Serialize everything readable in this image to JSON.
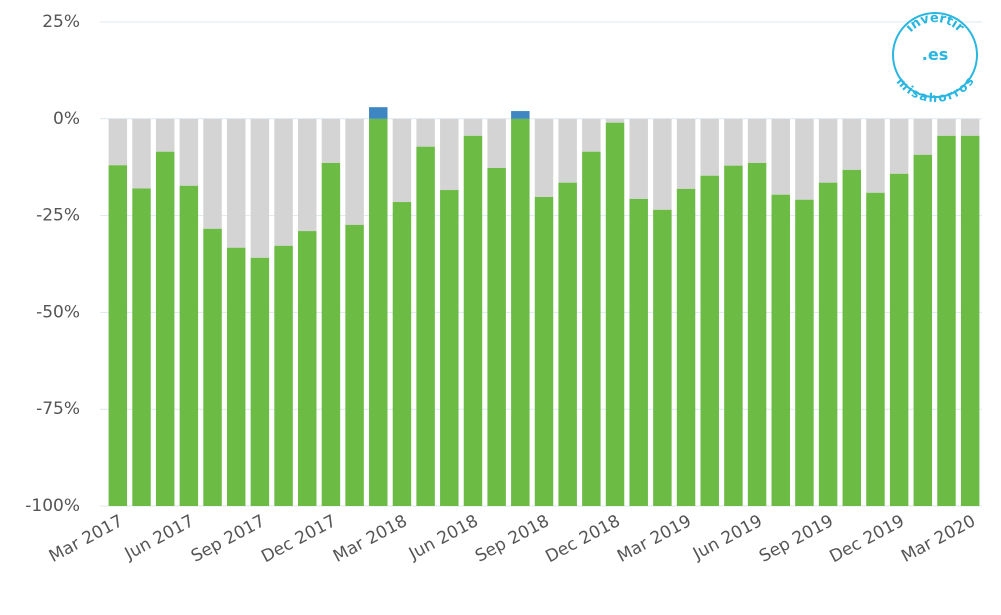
{
  "chart_data": {
    "type": "bar",
    "categories": [
      "Mar 2017",
      null,
      null,
      "Jun 2017",
      null,
      null,
      "Sep 2017",
      null,
      null,
      "Dec 2017",
      null,
      null,
      "Mar 2018",
      null,
      null,
      "Jun 2018",
      null,
      null,
      "Sep 2018",
      null,
      null,
      "Dec 2018",
      null,
      null,
      "Mar 2019",
      null,
      null,
      "Jun 2019",
      null,
      null,
      "Sep 2019",
      null,
      null,
      "Dec 2019",
      null,
      null,
      "Mar 2020"
    ],
    "values": [
      -12,
      -18,
      -8.5,
      -17.3,
      -28.4,
      -33.3,
      -35.9,
      -32.8,
      -29,
      -11.4,
      -27.4,
      3,
      -21.5,
      -7.2,
      -18.4,
      -4.4,
      -12.7,
      2,
      -20.2,
      -16.5,
      -8.5,
      -1,
      -20.7,
      -23.5,
      -18.1,
      -14.7,
      -12.1,
      -11.4,
      -19.6,
      -20.9,
      -16.5,
      -13.2,
      -19.1,
      -14.2,
      -9.3,
      -4.4,
      -4.4
    ],
    "color": "#6cbb44",
    "remainder_color": "#d4d4d4",
    "positive_color": "#3d86c2",
    "ylim": [
      -100,
      25
    ],
    "yticks": [
      {
        "value": -100,
        "label": "-100%"
      },
      {
        "value": -75,
        "label": "-75%"
      },
      {
        "value": -50,
        "label": "-50%"
      },
      {
        "value": -25,
        "label": "-25%"
      },
      {
        "value": 0,
        "label": "0%"
      },
      {
        "value": 25,
        "label": "25%"
      }
    ],
    "grid": true
  },
  "watermark": {
    "top": "invertir",
    "center": ".es",
    "bottom": "misahorros"
  }
}
